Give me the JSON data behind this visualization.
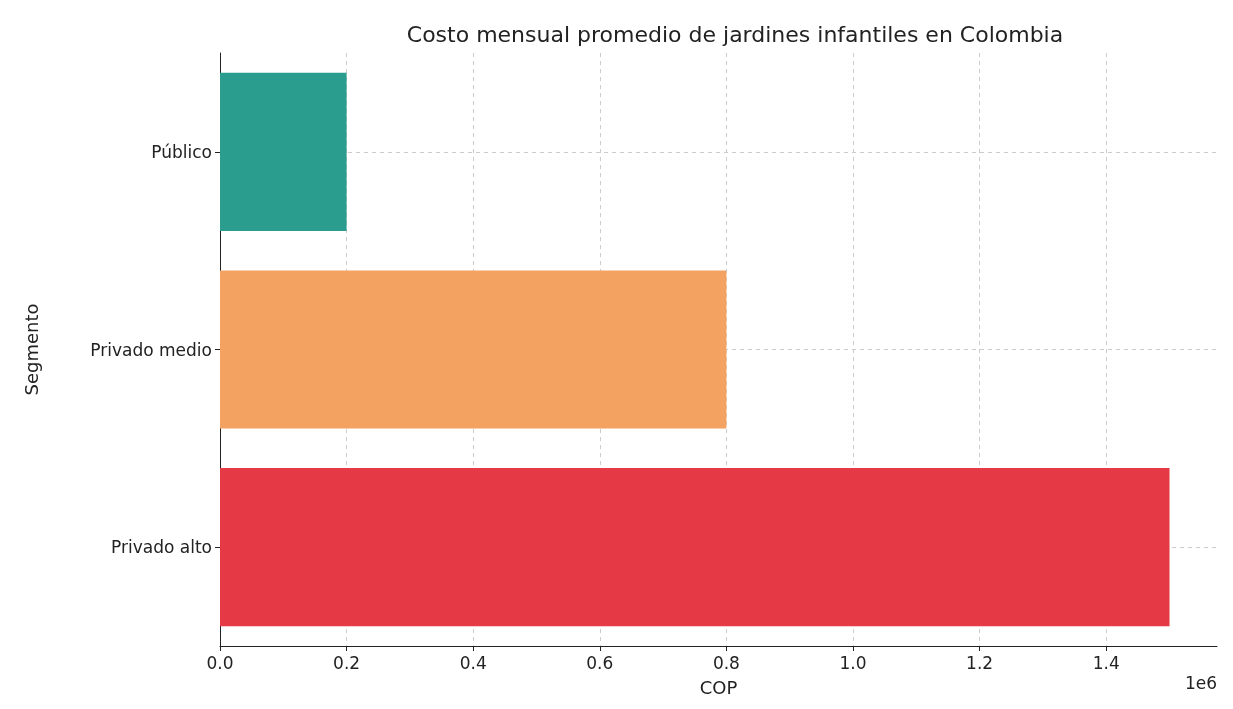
{
  "chart_data": {
    "type": "bar",
    "orientation": "horizontal",
    "title": "Costo mensual promedio de jardines infantiles en Colombia",
    "xlabel": "COP",
    "ylabel": "Segmento",
    "categories": [
      "Público",
      "Privado medio",
      "Privado alto"
    ],
    "values": [
      0.2,
      0.8,
      1.5
    ],
    "colors": [
      "#2a9d8f",
      "#f4a261",
      "#e63946"
    ],
    "xlim": [
      0,
      1.575
    ],
    "xticks": [
      {
        "value": 0,
        "label": "0.0"
      },
      0.2,
      0.4,
      0.6,
      0.8,
      {
        "value": 1,
        "label": "1.0"
      },
      1.2,
      1.4
    ],
    "annotations": [
      "1e6"
    ],
    "grid": true
  }
}
